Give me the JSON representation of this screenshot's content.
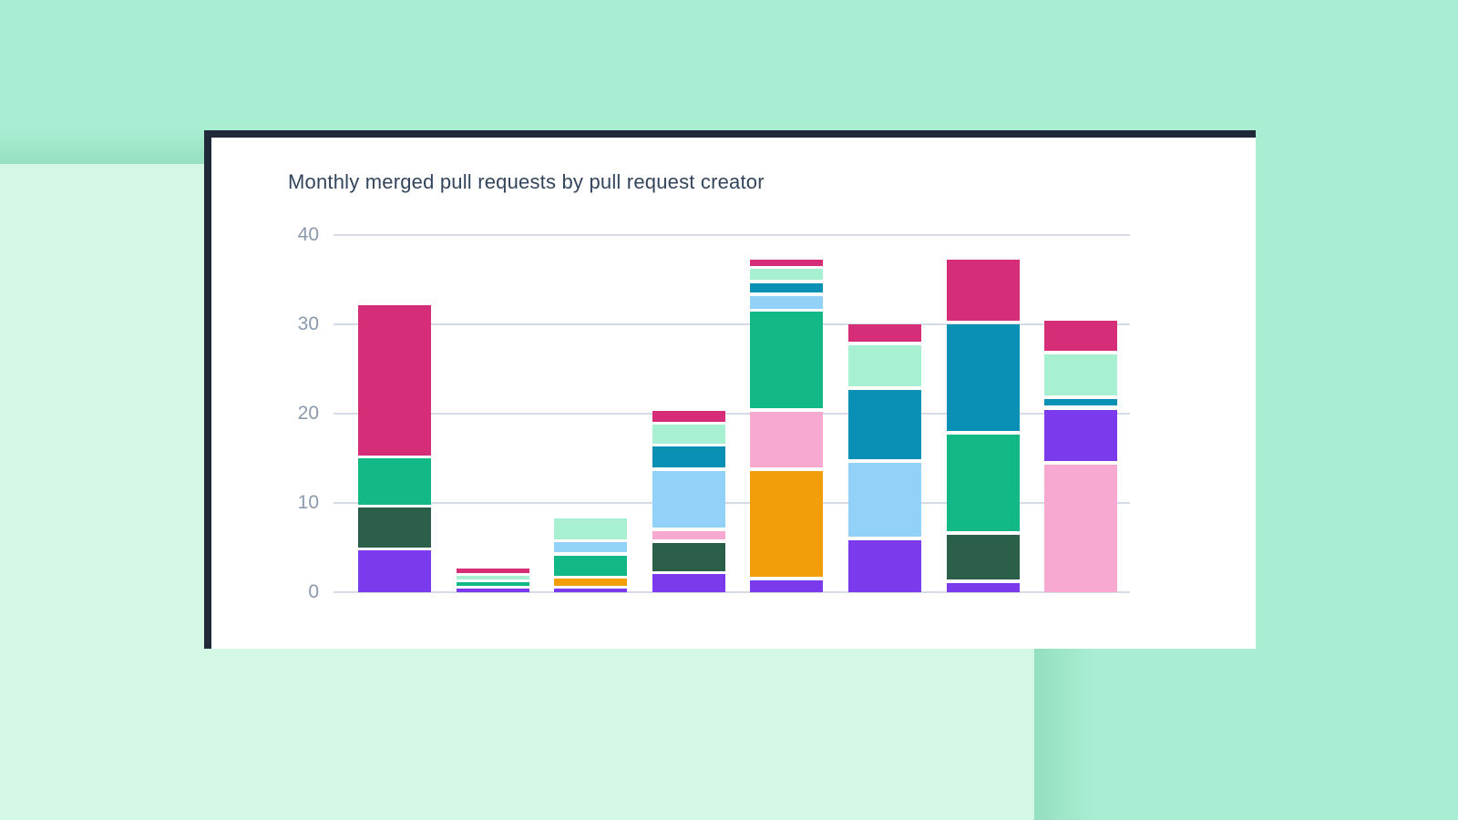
{
  "background": {
    "base_color": "#d3f8e5",
    "band_color": "#a9eed3",
    "band_shadow_color": "#97e0c1"
  },
  "card": {
    "background": "#ffffff",
    "border_color": "#20293a"
  },
  "chart_data": {
    "type": "bar",
    "stacked": true,
    "title": "Monthly merged pull requests by pull request creator",
    "title_color": "#33455c",
    "xlabel": "",
    "ylabel": "",
    "unit": "merged pull requests",
    "legend": "none",
    "y_axis": {
      "ticks": [
        "0",
        "10",
        "20",
        "30",
        "40"
      ],
      "tick_values": [
        0,
        10,
        20,
        30,
        40
      ],
      "min": 0,
      "max": 40,
      "grid": true,
      "grid_color": "#d5dce8",
      "label_color": "#8a98ac"
    },
    "x_axis": {
      "labels_visible": false,
      "categories": [
        "",
        "",
        "",
        "",
        "",
        "",
        "",
        ""
      ]
    },
    "palette": {
      "violet": "#7c3aed",
      "emerald": "#12b886",
      "darkgreen": "#2c5f4a",
      "magenta": "#d62d78",
      "mint": "#a7f1d2",
      "blue": "#92d2f9",
      "teal": "#0b90b5",
      "orange": "#f29e0b",
      "pink": "#f7a9d1"
    },
    "bars": [
      {
        "total": 32.1,
        "segments": [
          {
            "series": "violet",
            "from": 0,
            "to": 4.7
          },
          {
            "series": "darkgreen",
            "from": 5.05,
            "to": 9.45
          },
          {
            "series": "emerald",
            "from": 9.8,
            "to": 15.0
          },
          {
            "series": "magenta",
            "from": 15.35,
            "to": 32.1
          }
        ]
      },
      {
        "total": 2.65,
        "segments": [
          {
            "series": "violet",
            "from": 0,
            "to": 0.45
          },
          {
            "series": "emerald",
            "from": 0.75,
            "to": 1.15
          },
          {
            "series": "mint",
            "from": 1.45,
            "to": 1.85
          },
          {
            "series": "magenta",
            "from": 2.15,
            "to": 2.65
          }
        ]
      },
      {
        "total": 8.3,
        "segments": [
          {
            "series": "violet",
            "from": 0,
            "to": 0.45
          },
          {
            "series": "orange",
            "from": 0.75,
            "to": 1.5
          },
          {
            "series": "emerald",
            "from": 1.8,
            "to": 4.1
          },
          {
            "series": "blue",
            "from": 4.45,
            "to": 5.6
          },
          {
            "series": "mint",
            "from": 5.95,
            "to": 8.3
          }
        ]
      },
      {
        "total": 20.3,
        "segments": [
          {
            "series": "violet",
            "from": 0,
            "to": 2.0
          },
          {
            "series": "darkgreen",
            "from": 2.35,
            "to": 5.55
          },
          {
            "series": "pink",
            "from": 5.9,
            "to": 6.8
          },
          {
            "series": "blue",
            "from": 7.2,
            "to": 13.6
          },
          {
            "series": "teal",
            "from": 13.95,
            "to": 16.3
          },
          {
            "series": "mint",
            "from": 16.65,
            "to": 18.75
          },
          {
            "series": "magenta",
            "from": 19.1,
            "to": 20.3
          }
        ]
      },
      {
        "total": 37.2,
        "segments": [
          {
            "series": "violet",
            "from": 0,
            "to": 1.35
          },
          {
            "series": "orange",
            "from": 1.75,
            "to": 13.55
          },
          {
            "series": "pink",
            "from": 13.95,
            "to": 20.2
          },
          {
            "series": "emerald",
            "from": 20.6,
            "to": 31.4
          },
          {
            "series": "blue",
            "from": 31.75,
            "to": 33.2
          },
          {
            "series": "teal",
            "from": 33.55,
            "to": 34.6
          },
          {
            "series": "mint",
            "from": 34.95,
            "to": 36.2
          },
          {
            "series": "magenta",
            "from": 36.55,
            "to": 37.2
          }
        ]
      },
      {
        "total": 30.05,
        "segments": [
          {
            "series": "violet",
            "from": 0,
            "to": 5.85
          },
          {
            "series": "blue",
            "from": 6.25,
            "to": 14.5
          },
          {
            "series": "teal",
            "from": 14.9,
            "to": 22.7
          },
          {
            "series": "mint",
            "from": 23.1,
            "to": 27.65
          },
          {
            "series": "magenta",
            "from": 28.05,
            "to": 30.05
          }
        ]
      },
      {
        "total": 37.2,
        "segments": [
          {
            "series": "violet",
            "from": 0,
            "to": 1.05
          },
          {
            "series": "darkgreen",
            "from": 1.45,
            "to": 6.4
          },
          {
            "series": "emerald",
            "from": 6.85,
            "to": 17.65
          },
          {
            "series": "teal",
            "from": 18.1,
            "to": 30.0
          },
          {
            "series": "magenta",
            "from": 30.4,
            "to": 37.2
          }
        ]
      },
      {
        "total": 30.4,
        "segments": [
          {
            "series": "pink",
            "from": 0,
            "to": 14.25
          },
          {
            "series": "violet",
            "from": 14.65,
            "to": 20.4
          },
          {
            "series": "teal",
            "from": 20.9,
            "to": 21.6
          },
          {
            "series": "mint",
            "from": 22.0,
            "to": 26.6
          },
          {
            "series": "magenta",
            "from": 27.0,
            "to": 30.4
          }
        ]
      }
    ]
  }
}
